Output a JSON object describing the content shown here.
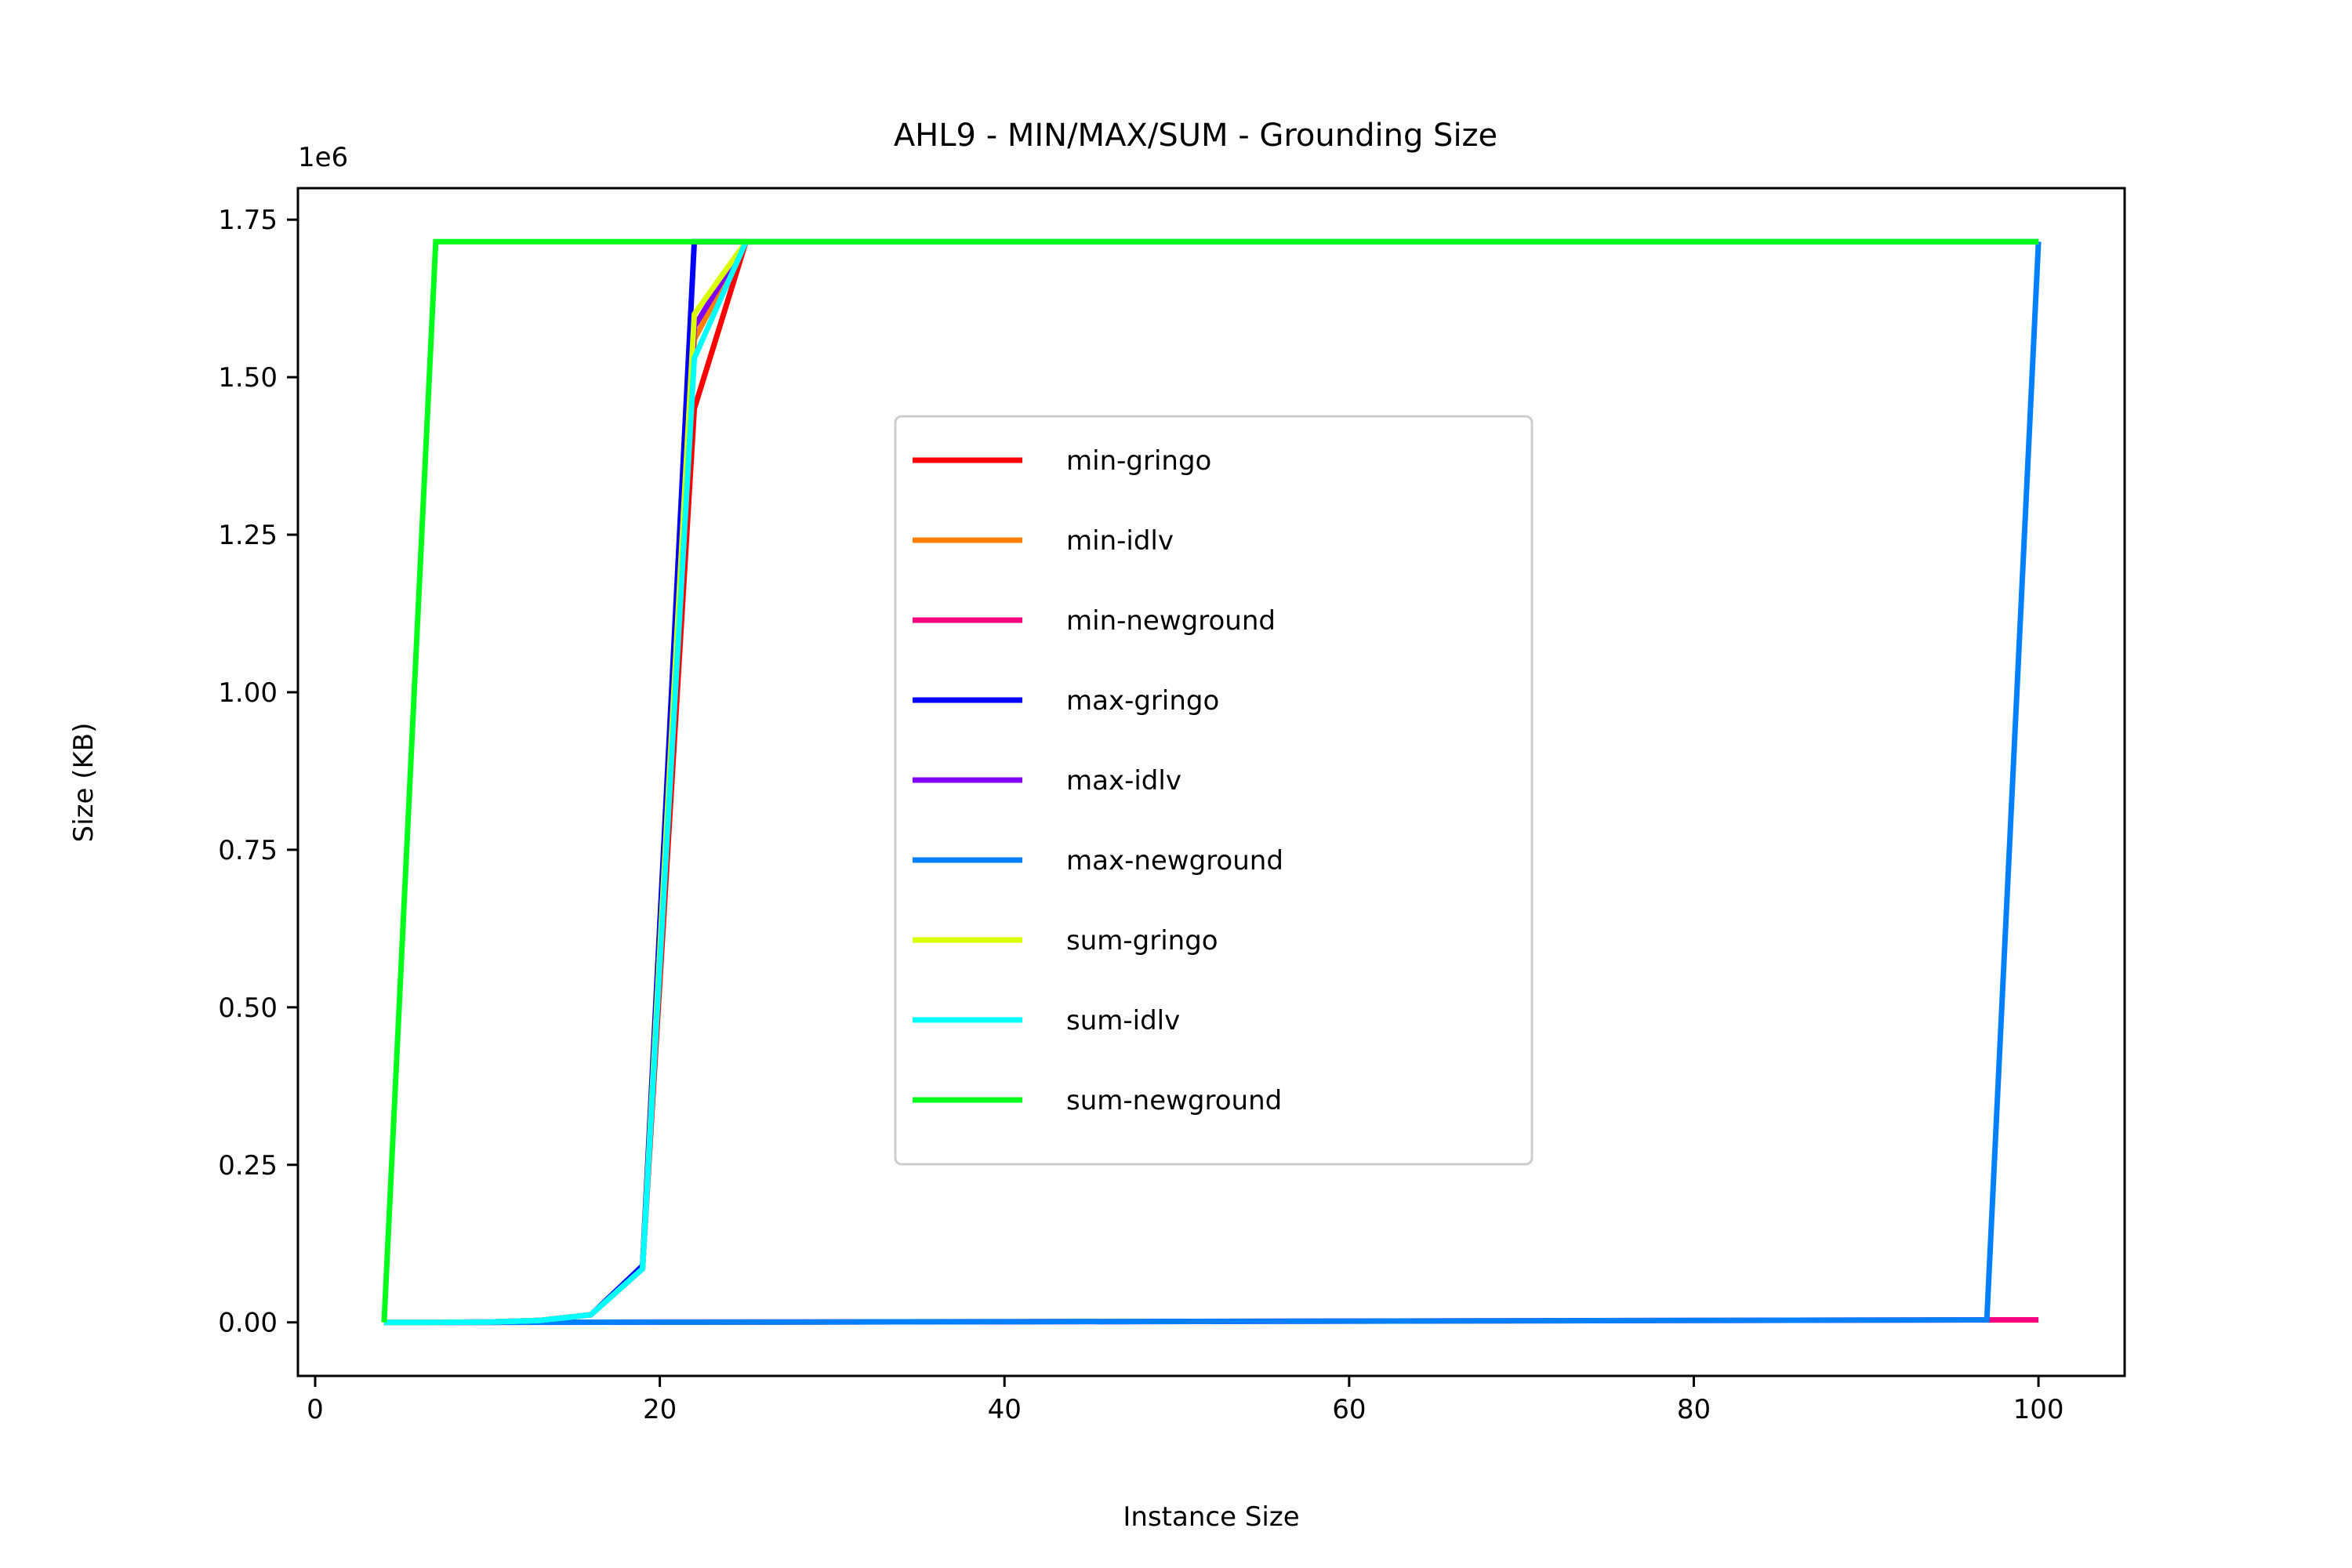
{
  "chart_data": {
    "type": "line",
    "title": "AHL9 - MIN/MAX/SUM - Grounding Size",
    "xlabel": "Instance Size",
    "ylabel": "Size (KB)",
    "y_offset_label": "1e6",
    "xlim": [
      -1,
      105
    ],
    "ylim": [
      -0.085,
      1.8
    ],
    "x_ticks": [
      0,
      20,
      40,
      60,
      80,
      100
    ],
    "y_ticks": [
      0.0,
      0.25,
      0.5,
      0.75,
      1.0,
      1.25,
      1.5,
      1.75
    ],
    "x_tick_labels": [
      "0",
      "20",
      "40",
      "60",
      "80",
      "100"
    ],
    "y_tick_labels": [
      "0.00",
      "0.25",
      "0.50",
      "0.75",
      "1.00",
      "1.25",
      "1.50",
      "1.75"
    ],
    "grid": false,
    "legend_position": "center",
    "series": [
      {
        "name": "min-gringo",
        "color": "#ff0000",
        "x": [
          4,
          7,
          10,
          13,
          16,
          19,
          22,
          25,
          100
        ],
        "y": [
          0,
          0,
          0.0005,
          0.003,
          0.012,
          0.085,
          1.45,
          1.715,
          1.715
        ]
      },
      {
        "name": "min-idlv",
        "color": "#ff8000",
        "x": [
          4,
          7,
          10,
          13,
          16,
          19,
          22,
          25,
          100
        ],
        "y": [
          0,
          0,
          0.0005,
          0.003,
          0.012,
          0.085,
          1.56,
          1.715,
          1.715
        ]
      },
      {
        "name": "min-newground",
        "color": "#ff0080",
        "x": [
          4,
          7,
          10,
          20,
          40,
          60,
          80,
          97,
          100
        ],
        "y": [
          0,
          0,
          0,
          0.0003,
          0.001,
          0.002,
          0.003,
          0.004,
          0.004
        ]
      },
      {
        "name": "max-gringo",
        "color": "#0000ff",
        "x": [
          4,
          7,
          10,
          13,
          16,
          19,
          22,
          25,
          100
        ],
        "y": [
          0,
          0,
          0.0005,
          0.003,
          0.012,
          0.09,
          1.715,
          1.715,
          1.715
        ]
      },
      {
        "name": "max-idlv",
        "color": "#8000ff",
        "x": [
          4,
          7,
          10,
          13,
          16,
          19,
          22,
          25,
          100
        ],
        "y": [
          0,
          0,
          0.0005,
          0.003,
          0.012,
          0.085,
          1.58,
          1.715,
          1.715
        ]
      },
      {
        "name": "max-newground",
        "color": "#0080ff",
        "x": [
          4,
          7,
          10,
          20,
          40,
          60,
          80,
          97,
          100
        ],
        "y": [
          0,
          0,
          0,
          0.0003,
          0.001,
          0.002,
          0.003,
          0.004,
          1.715
        ]
      },
      {
        "name": "sum-gringo",
        "color": "#d9ff00",
        "x": [
          4,
          7,
          10,
          13,
          16,
          19,
          22,
          25,
          100
        ],
        "y": [
          0,
          0,
          0.0005,
          0.003,
          0.012,
          0.085,
          1.6,
          1.715,
          1.715
        ]
      },
      {
        "name": "sum-idlv",
        "color": "#00ffff",
        "x": [
          4,
          7,
          10,
          13,
          16,
          19,
          22,
          25,
          100
        ],
        "y": [
          0,
          0,
          0.0005,
          0.003,
          0.012,
          0.085,
          1.53,
          1.715,
          1.715
        ]
      },
      {
        "name": "sum-newground",
        "color": "#00ff1a",
        "x": [
          4,
          7,
          100
        ],
        "y": [
          0,
          1.715,
          1.715
        ]
      }
    ]
  }
}
